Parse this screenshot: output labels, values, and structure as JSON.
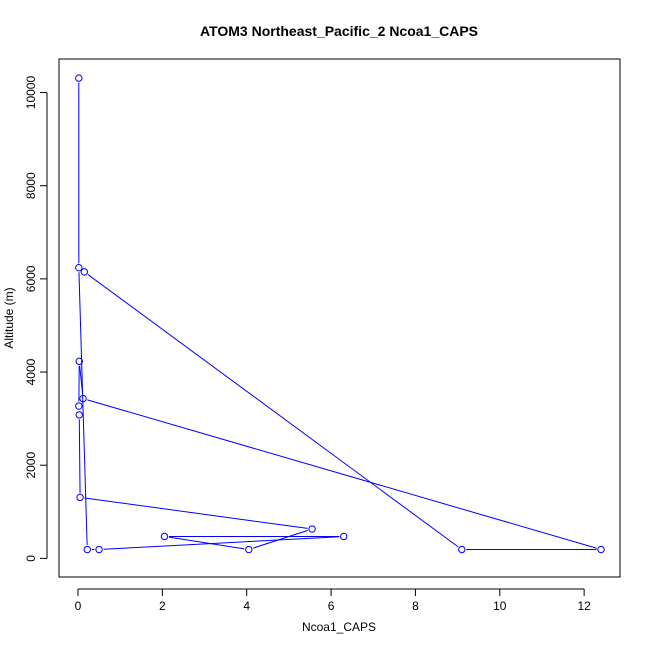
{
  "chart_data": {
    "type": "line",
    "title": "ATOM3 Northeast_Pacific_2 Ncoa1_CAPS",
    "xlabel": "Ncoa1_CAPS",
    "ylabel": "Altitude (m)",
    "xlim": [
      -0.45,
      12.85
    ],
    "ylim": [
      -400,
      10720
    ],
    "xticks": [
      0,
      2,
      4,
      6,
      8,
      10,
      12
    ],
    "yticks": [
      0,
      2000,
      4000,
      6000,
      8000,
      10000
    ],
    "grid": false,
    "legend": "none",
    "series": [
      {
        "color": "#0000ff",
        "points": [
          [
            0.02,
            10310
          ],
          [
            0.02,
            6240
          ],
          [
            0.22,
            190
          ],
          [
            0.5,
            190
          ],
          [
            6.3,
            470
          ],
          [
            2.05,
            470
          ],
          [
            4.05,
            190
          ],
          [
            5.55,
            630
          ],
          [
            0.05,
            1310
          ],
          [
            0.03,
            3080
          ],
          [
            0.02,
            3270
          ],
          [
            0.03,
            4230
          ],
          [
            0.12,
            3430
          ],
          [
            12.4,
            190
          ],
          [
            9.1,
            190
          ],
          [
            0.15,
            6150
          ]
        ]
      }
    ]
  }
}
